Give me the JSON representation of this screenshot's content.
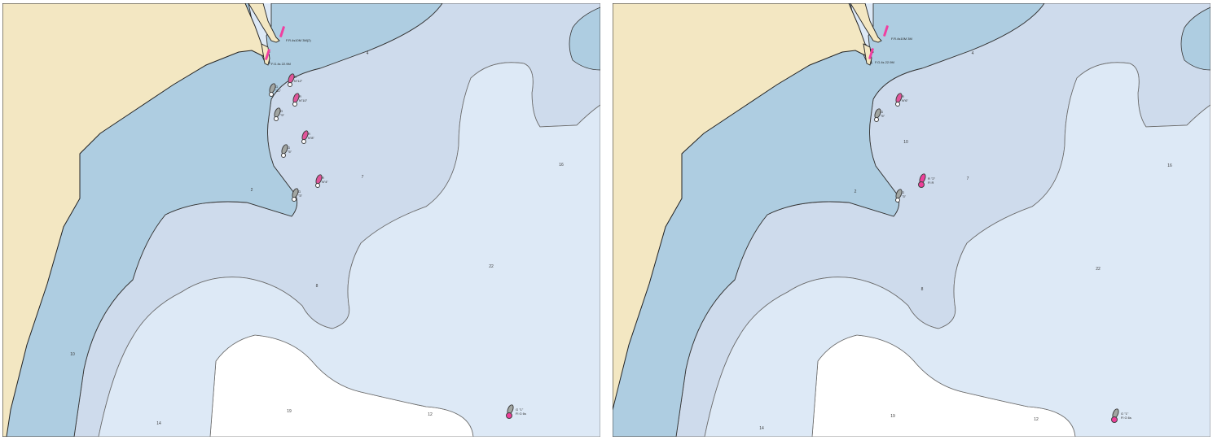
{
  "colors": {
    "land": "#f3e7c2",
    "shallow": "#aecde1",
    "mid": "#cedbec",
    "deep": "#dde9f6",
    "deepest": "#ffffff",
    "red_mark": "#e0559a",
    "green_mark": "#a2a6a2"
  },
  "panels": [
    {
      "depths": [
        "4",
        "2",
        "7",
        "8",
        "10",
        "14",
        "19",
        "12",
        "16",
        "22"
      ],
      "pier_labels": [
        "F.R.4s10M 3M(2)",
        "F.G.4s 22.9M"
      ],
      "buoys": [
        {
          "icon": "green-marker-icon",
          "line1": "G",
          "line2": "\"11\""
        },
        {
          "icon": "red-marker-icon",
          "line1": "R",
          "line2": "N\"12\""
        },
        {
          "icon": "red-marker-icon",
          "line1": "R",
          "line2": "N\"10\""
        },
        {
          "icon": "green-marker-icon",
          "line1": "G",
          "line2": "\"9\""
        },
        {
          "icon": "red-marker-icon",
          "line1": "R",
          "line2": "N\"8\""
        },
        {
          "icon": "green-marker-icon",
          "line1": "G",
          "line2": "\"5\""
        },
        {
          "icon": "red-marker-icon",
          "line1": "R",
          "line2": "N\"4\""
        },
        {
          "icon": "green-marker-icon",
          "line1": "G",
          "line2": "\"3\""
        }
      ],
      "light_buoy": {
        "icon": "green-lighted-buoy-icon",
        "line1": "G \"1\"",
        "line2": "Fl G 6s"
      }
    },
    {
      "depths": [
        "4",
        "2",
        "7",
        "8",
        "10",
        "14",
        "19",
        "12",
        "16",
        "22"
      ],
      "pier_labels": [
        "F.R.4s10M 3M",
        "F.G.4s 22.9M"
      ],
      "buoys": [
        {
          "icon": "red-marker-icon",
          "line1": "R",
          "line2": "N\"6\""
        },
        {
          "icon": "green-marker-icon",
          "line1": "G",
          "line2": "\"5\""
        },
        {
          "icon": "green-marker-icon",
          "line1": "G",
          "line2": "\"3\""
        }
      ],
      "light_buoy_mid": {
        "icon": "red-lighted-buoy-icon",
        "line1": "R \"2\"",
        "line2": "Fl R"
      },
      "light_buoy": {
        "icon": "green-lighted-buoy-icon",
        "line1": "G \"1\"",
        "line2": "Fl G 6s"
      }
    }
  ]
}
